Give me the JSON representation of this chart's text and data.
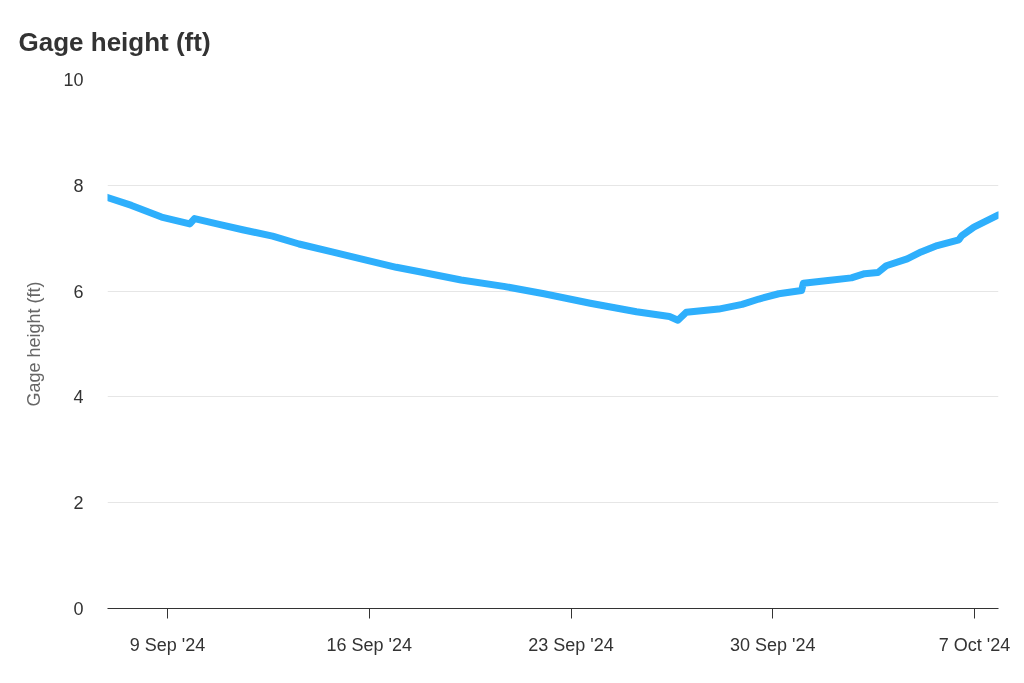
{
  "chart_data": {
    "type": "line",
    "title": "Gage height (ft)",
    "ylabel": "Gage height (ft)",
    "x": [
      "2024-09-06T22:00",
      "2024-09-07T18:00",
      "2024-09-08T19:00",
      "2024-09-09T18:30",
      "2024-09-09T22:30",
      "2024-09-10T19:00",
      "2024-09-11T14:30",
      "2024-09-12T15:30",
      "2024-09-13T13:30",
      "2024-09-14T17:00",
      "2024-09-15T20:30",
      "2024-09-16T22:30",
      "2024-09-17T19:00",
      "2024-09-19T04:30",
      "2024-09-20T16:00",
      "2024-09-22T01:30",
      "2024-09-23T16:00",
      "2024-09-25T06:30",
      "2024-09-26T10:00",
      "2024-09-26T17:00",
      "2024-09-27T00:00",
      "2024-09-28T03:00",
      "2024-09-28T22:30",
      "2024-09-29T12:30",
      "2024-09-30T05:00",
      "2024-10-01T00:00",
      "2024-10-01T01:30",
      "2024-10-01T22:00",
      "2024-10-02T17:30",
      "2024-10-03T04:30",
      "2024-10-03T15:30",
      "2024-10-03T22:30",
      "2024-10-04T16:00",
      "2024-10-05T03:30",
      "2024-10-05T17:00",
      "2024-10-06T11:00",
      "2024-10-06T13:30",
      "2024-10-06T23:30",
      "2024-10-07T20:00"
    ],
    "series": [
      {
        "color": "#2eaffc",
        "values": [
          7.77,
          7.62,
          7.4,
          7.27,
          7.37,
          7.26,
          7.16,
          7.04,
          6.89,
          6.74,
          6.59,
          6.45,
          6.36,
          6.21,
          6.09,
          5.95,
          5.77,
          5.61,
          5.52,
          5.45,
          5.6,
          5.66,
          5.75,
          5.85,
          5.95,
          6.01,
          6.15,
          6.2,
          6.25,
          6.33,
          6.35,
          6.48,
          6.61,
          6.74,
          6.86,
          6.97,
          7.05,
          7.21,
          7.44
        ]
      }
    ],
    "xlim": [
      "2024-09-06T22:00",
      "2024-10-07T20:00"
    ],
    "xticks": [
      {
        "value": "2024-09-09",
        "label": "9 Sep '24"
      },
      {
        "value": "2024-09-16",
        "label": "16 Sep '24"
      },
      {
        "value": "2024-09-23",
        "label": "23 Sep '24"
      },
      {
        "value": "2024-09-30",
        "label": "30 Sep '24"
      },
      {
        "value": "2024-10-07",
        "label": "7 Oct '24"
      }
    ],
    "ylim": [
      0,
      10
    ],
    "yticks": [
      0,
      2,
      4,
      6,
      8,
      10
    ],
    "grid": "y"
  }
}
